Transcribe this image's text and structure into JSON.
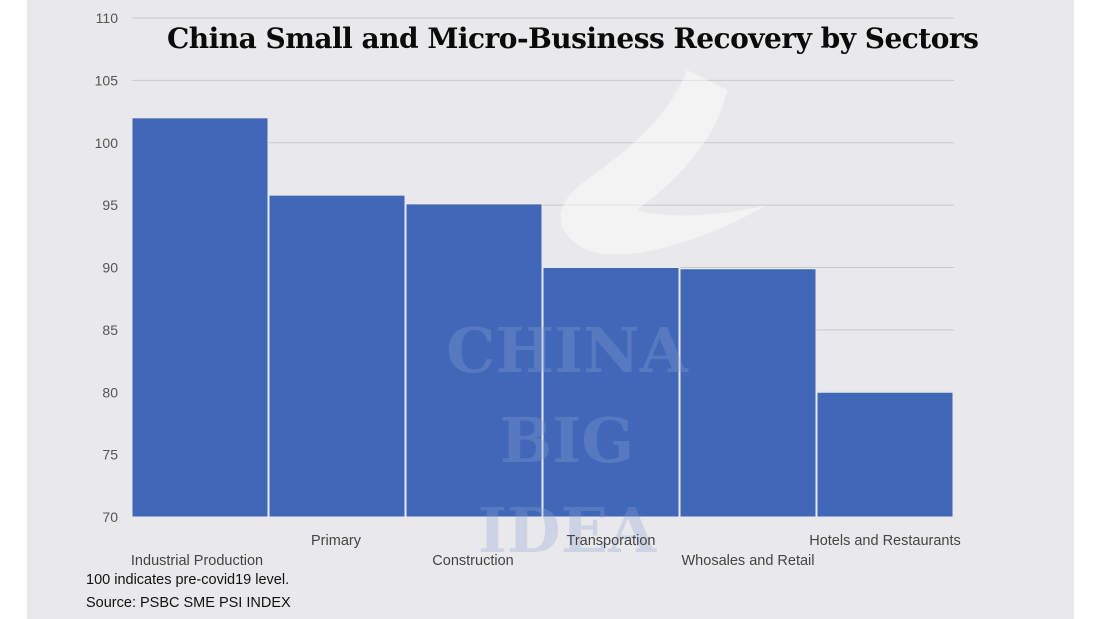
{
  "chart_data": {
    "type": "bar",
    "title": "China Small and Micro-Business Recovery by Sectors",
    "categories": [
      "Industrial Production",
      "Primary",
      "Construction",
      "Transporation",
      "Whosales and Retail",
      "Hotels and Restaurants"
    ],
    "values": [
      102,
      95.8,
      95.1,
      90,
      89.9,
      80
    ],
    "ylim": [
      70,
      110
    ],
    "yticks": [
      70,
      75,
      80,
      85,
      90,
      95,
      100,
      105,
      110
    ],
    "grid": true,
    "bar_color": "#4167b8",
    "gridline_color": "#c9c9cc",
    "notes": [
      "100 indicates pre-covid19 level.",
      "Source: PSBC SME PSI INDEX"
    ]
  },
  "watermark": {
    "lines": [
      "CHINA",
      "BIG",
      "IDEA"
    ]
  }
}
